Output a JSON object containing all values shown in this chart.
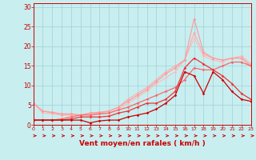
{
  "xlabel": "Vent moyen/en rafales ( km/h )",
  "xlim": [
    0,
    23
  ],
  "ylim": [
    0,
    31
  ],
  "xticks": [
    0,
    1,
    2,
    3,
    4,
    5,
    6,
    7,
    8,
    9,
    10,
    11,
    12,
    13,
    14,
    15,
    16,
    17,
    18,
    19,
    20,
    21,
    22,
    23
  ],
  "yticks": [
    0,
    5,
    10,
    15,
    20,
    25,
    30
  ],
  "bg_color": "#c8eef0",
  "grid_color": "#a0d0d8",
  "series": [
    {
      "x": [
        0,
        1,
        2,
        3,
        4,
        5,
        6,
        7,
        8,
        9,
        10,
        11,
        12,
        13,
        14,
        15,
        16,
        17,
        18,
        19,
        20,
        21,
        22,
        23
      ],
      "y": [
        5.5,
        3.0,
        2.8,
        2.5,
        2.5,
        2.5,
        2.8,
        2.8,
        3.0,
        4.0,
        5.5,
        7.0,
        8.5,
        10.5,
        12.0,
        13.5,
        16.5,
        22.0,
        17.5,
        16.5,
        16.0,
        17.0,
        17.0,
        15.0
      ],
      "color": "#ffbbbb",
      "lw": 0.8,
      "marker": "D",
      "ms": 1.8
    },
    {
      "x": [
        0,
        1,
        2,
        3,
        4,
        5,
        6,
        7,
        8,
        9,
        10,
        11,
        12,
        13,
        14,
        15,
        16,
        17,
        18,
        19,
        20,
        21,
        22,
        23
      ],
      "y": [
        5.5,
        3.5,
        3.0,
        2.5,
        2.5,
        2.5,
        3.0,
        3.0,
        3.5,
        4.5,
        6.5,
        8.0,
        9.5,
        11.5,
        13.5,
        15.0,
        16.5,
        23.5,
        18.0,
        17.0,
        16.5,
        17.0,
        17.5,
        15.5
      ],
      "color": "#ffaaaa",
      "lw": 0.8,
      "marker": "D",
      "ms": 1.8
    },
    {
      "x": [
        0,
        1,
        2,
        3,
        4,
        5,
        6,
        7,
        8,
        9,
        10,
        11,
        12,
        13,
        14,
        15,
        16,
        17,
        18,
        19,
        20,
        21,
        22,
        23
      ],
      "y": [
        5.5,
        3.5,
        3.2,
        2.8,
        2.8,
        2.5,
        3.0,
        3.2,
        3.5,
        4.5,
        6.0,
        7.5,
        9.0,
        11.0,
        13.0,
        14.5,
        16.5,
        27.0,
        18.5,
        17.0,
        16.5,
        17.0,
        17.0,
        15.0
      ],
      "color": "#ff9999",
      "lw": 0.8,
      "marker": "D",
      "ms": 1.8
    },
    {
      "x": [
        0,
        1,
        2,
        3,
        4,
        5,
        6,
        7,
        8,
        9,
        10,
        11,
        12,
        13,
        14,
        15,
        16,
        17,
        18,
        19,
        20,
        21,
        22,
        23
      ],
      "y": [
        1.2,
        1.2,
        1.2,
        1.5,
        2.0,
        2.5,
        2.5,
        2.8,
        3.0,
        3.8,
        4.5,
        5.5,
        6.5,
        7.5,
        8.5,
        9.5,
        11.5,
        14.5,
        14.0,
        14.0,
        15.0,
        16.0,
        16.0,
        15.0
      ],
      "color": "#ff6666",
      "lw": 0.9,
      "marker": "D",
      "ms": 1.8
    },
    {
      "x": [
        0,
        1,
        2,
        3,
        4,
        5,
        6,
        7,
        8,
        9,
        10,
        11,
        12,
        13,
        14,
        15,
        16,
        17,
        18,
        19,
        20,
        21,
        22,
        23
      ],
      "y": [
        1.2,
        1.2,
        1.2,
        1.2,
        1.5,
        2.0,
        2.0,
        2.0,
        2.2,
        3.0,
        3.5,
        4.5,
        5.5,
        5.5,
        6.5,
        8.5,
        14.5,
        17.0,
        15.5,
        14.0,
        12.5,
        10.5,
        8.0,
        6.5
      ],
      "color": "#ee3333",
      "lw": 0.9,
      "marker": "D",
      "ms": 1.8
    },
    {
      "x": [
        0,
        1,
        2,
        3,
        4,
        5,
        6,
        7,
        8,
        9,
        10,
        11,
        12,
        13,
        14,
        15,
        16,
        17,
        18,
        19,
        20,
        21,
        22,
        23
      ],
      "y": [
        1.2,
        1.2,
        1.2,
        1.2,
        1.2,
        1.2,
        0.5,
        1.0,
        1.2,
        1.2,
        2.0,
        2.5,
        3.0,
        4.0,
        5.5,
        7.5,
        13.5,
        12.5,
        8.0,
        13.5,
        11.5,
        8.5,
        6.5,
        6.0
      ],
      "color": "#cc0000",
      "lw": 0.9,
      "marker": "D",
      "ms": 1.8
    }
  ],
  "arrow_color": "#cc0000",
  "xlabel_color": "#cc0000",
  "xlabel_fontsize": 6.5,
  "tick_fontsize": 5.0,
  "tick_color": "#cc0000"
}
